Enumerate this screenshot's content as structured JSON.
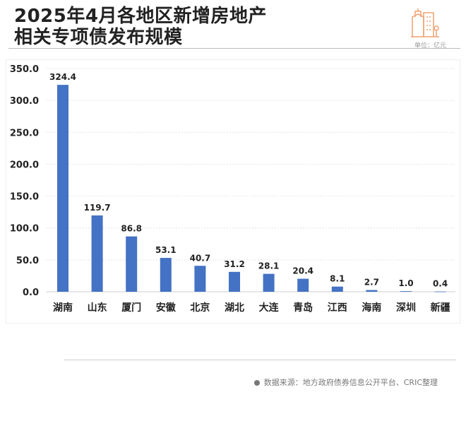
{
  "header": {
    "title_line1": "2025年4月各地区新增房地产",
    "title_line2": "相关专项债发布规模",
    "unit": "单位：亿元"
  },
  "footer": {
    "source": "数据来源：地方政府债券信息公开平台、CRIC整理"
  },
  "colors": {
    "bar": "#4472c4",
    "accent": "#f0a070"
  },
  "chart_data": {
    "type": "bar",
    "title": "2025年4月各地区新增房地产相关专项债发布规模",
    "ylabel": "单位：亿元",
    "xlabel": "",
    "ylim": [
      0,
      350
    ],
    "yticks": [
      "0.0",
      "50.0",
      "100.0",
      "150.0",
      "200.0",
      "250.0",
      "300.0",
      "350.0"
    ],
    "categories": [
      "湖南",
      "山东",
      "厦门",
      "安徽",
      "北京",
      "湖北",
      "大连",
      "青岛",
      "江西",
      "海南",
      "深圳",
      "新疆"
    ],
    "values": [
      324.4,
      119.7,
      86.8,
      53.1,
      40.7,
      31.2,
      28.1,
      20.4,
      8.1,
      2.7,
      1.0,
      0.4
    ],
    "labels": [
      "324.4",
      "119.7",
      "86.8",
      "53.1",
      "40.7",
      "31.2",
      "28.1",
      "20.4",
      "8.1",
      "2.7",
      "1.0",
      "0.4"
    ],
    "grid": true,
    "legend": "none"
  }
}
